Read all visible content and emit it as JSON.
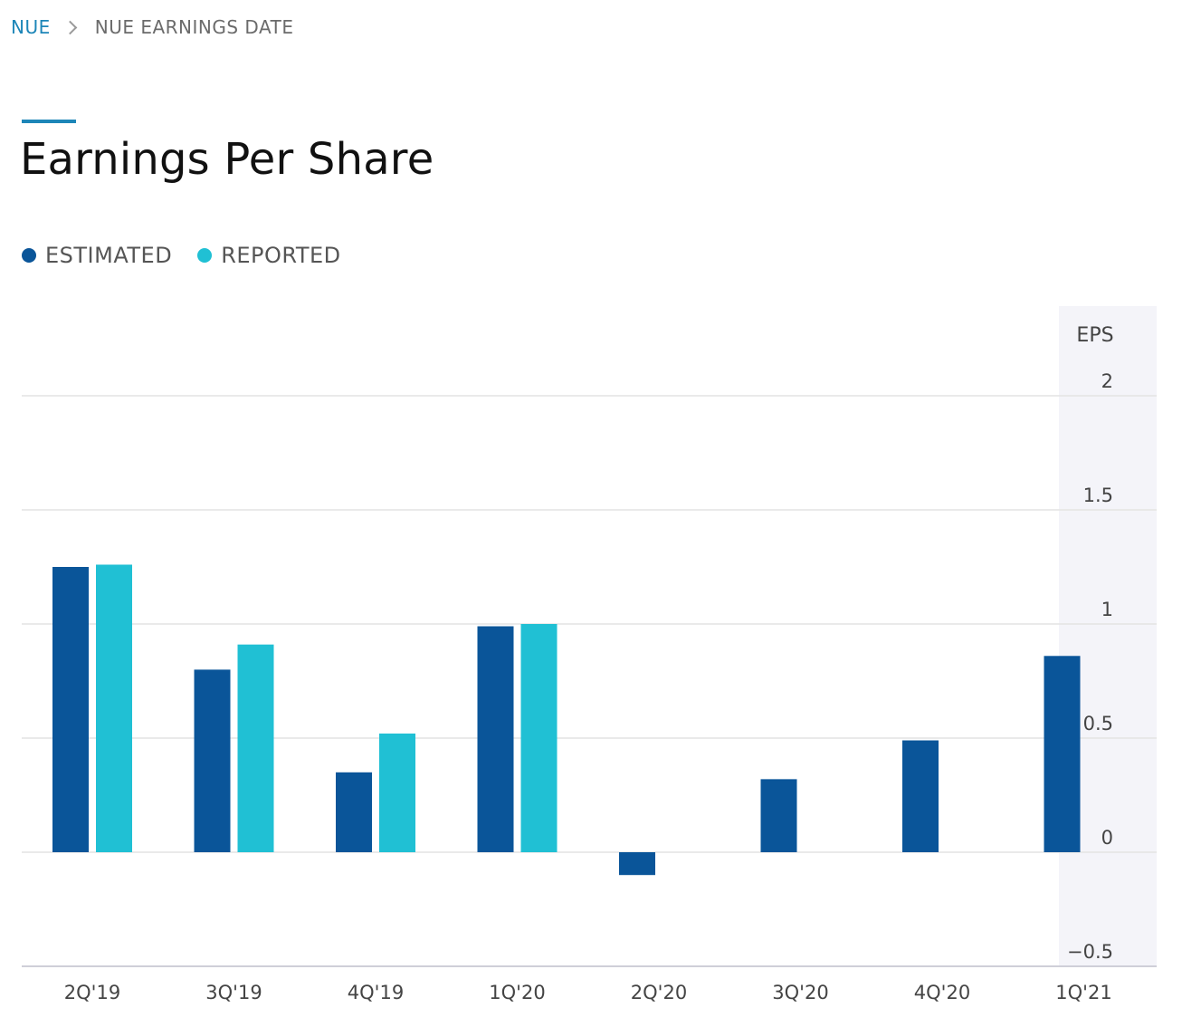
{
  "breadcrumb": {
    "parent": "NUE",
    "current": "NUE EARNINGS DATE"
  },
  "page_title": "Earnings Per Share",
  "colors": {
    "estimated": "#0a5599",
    "reported": "#20c0d4",
    "accent": "#1d86b8",
    "axis_band": "#f4f4f9",
    "gridline": "#e3e3e3"
  },
  "chart_data": {
    "type": "bar",
    "title": "",
    "xlabel": "",
    "ylabel": "EPS",
    "ylim": [
      -0.5,
      2
    ],
    "yticks": [
      2,
      1.5,
      1,
      0.5,
      0,
      -0.5
    ],
    "ytick_labels": [
      "2",
      "1.5",
      "1",
      "0.5",
      "0",
      "−0.5"
    ],
    "grid": true,
    "legend_position": "top-left",
    "categories": [
      "2Q'19",
      "3Q'19",
      "4Q'19",
      "1Q'20",
      "2Q'20",
      "3Q'20",
      "4Q'20",
      "1Q'21"
    ],
    "series": [
      {
        "name": "ESTIMATED",
        "values": [
          1.25,
          0.8,
          0.35,
          0.99,
          -0.1,
          0.32,
          0.49,
          0.86
        ]
      },
      {
        "name": "REPORTED",
        "values": [
          1.26,
          0.91,
          0.52,
          1.0,
          null,
          null,
          null,
          null
        ]
      }
    ]
  }
}
